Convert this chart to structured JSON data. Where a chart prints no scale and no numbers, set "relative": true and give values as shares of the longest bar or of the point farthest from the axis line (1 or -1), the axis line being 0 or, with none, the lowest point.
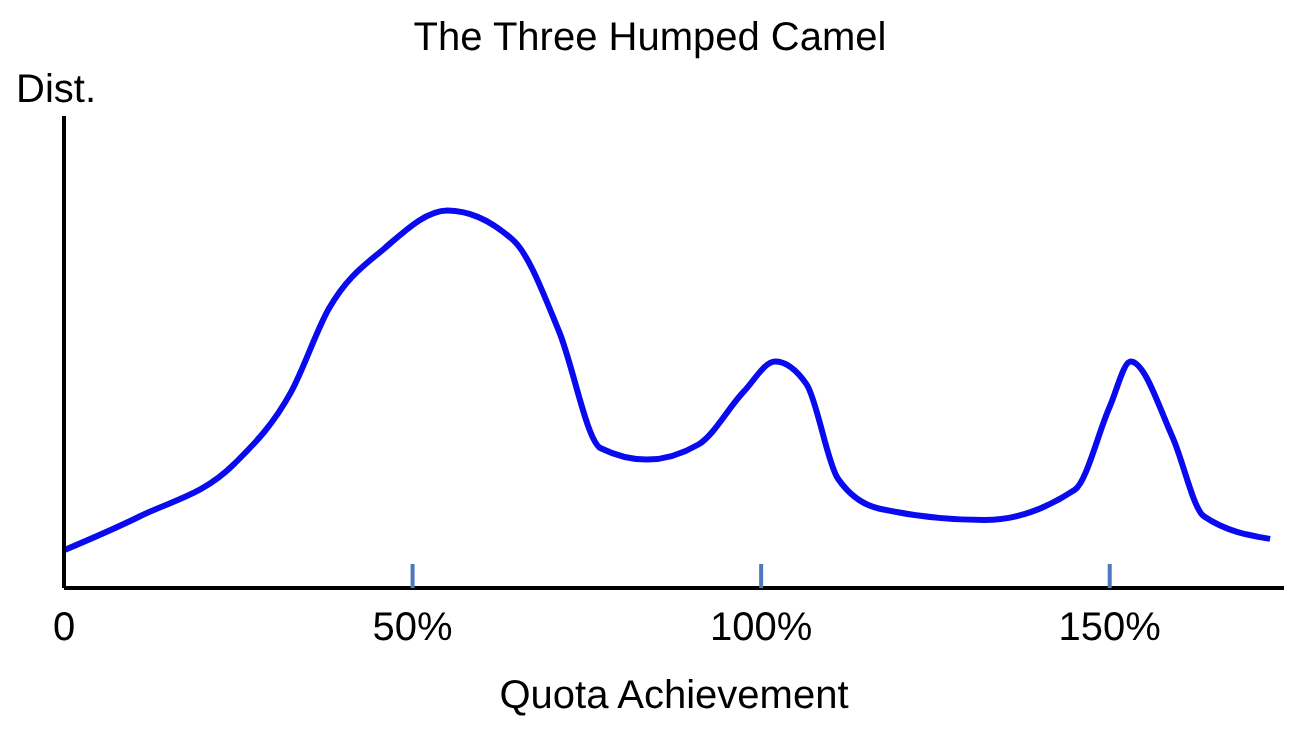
{
  "chart_data": {
    "type": "line",
    "title": "The Three Humped Camel",
    "xlabel": "Quota Achievement",
    "ylabel": "Dist.",
    "relative": true,
    "marker": "none",
    "line_style": "solid",
    "grid": false,
    "legend": false,
    "xlim": [
      0,
      175
    ],
    "xticks": [
      0,
      {
        "value": 50,
        "label": "50%"
      },
      {
        "value": 100,
        "label": "100%"
      },
      {
        "value": 150,
        "label": "150%"
      }
    ],
    "series": [
      {
        "color": "#0a0af0",
        "x": [
          0,
          10.9,
          24.5,
          32.6,
          38,
          46,
          55,
          64.5,
          71,
          77,
          83.6,
          91,
          97.5,
          102,
          106.5,
          111,
          117,
          132,
          145,
          150,
          153,
          159,
          163.5,
          173
        ],
        "values": [
          0.1,
          0.19,
          0.33,
          0.52,
          0.74,
          0.9,
          1.0,
          0.92,
          0.68,
          0.37,
          0.34,
          0.38,
          0.52,
          0.6,
          0.54,
          0.29,
          0.21,
          0.18,
          0.26,
          0.48,
          0.6,
          0.4,
          0.19,
          0.13
        ]
      }
    ]
  }
}
